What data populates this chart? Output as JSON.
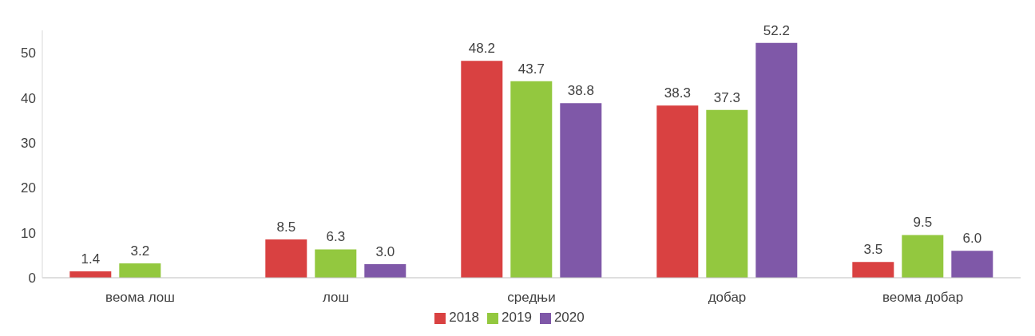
{
  "chart_data": {
    "type": "bar",
    "categories": [
      "веома лош",
      "лош",
      "средњи",
      "добар",
      "веома добар"
    ],
    "series": [
      {
        "name": "2018",
        "color": "#d94141",
        "values": [
          1.4,
          8.5,
          48.2,
          38.3,
          3.5
        ],
        "value_labels": [
          "1.4",
          "8.5",
          "48.2",
          "38.3",
          "3.5"
        ]
      },
      {
        "name": "2019",
        "color": "#93c83f",
        "values": [
          3.2,
          6.3,
          43.7,
          37.3,
          9.5
        ],
        "value_labels": [
          "3.2",
          "6.3",
          "43.7",
          "37.3",
          "9.5"
        ]
      },
      {
        "name": "2020",
        "color": "#7f58a8",
        "values": [
          null,
          3.0,
          38.8,
          52.2,
          6.0
        ],
        "value_labels": [
          null,
          "3.0",
          "38.8",
          "52.2",
          "6.0"
        ]
      }
    ],
    "ylim": [
      0,
      55
    ],
    "yticks": [
      0,
      10,
      20,
      30,
      40,
      50
    ],
    "grid": false,
    "legend": "bottom"
  }
}
